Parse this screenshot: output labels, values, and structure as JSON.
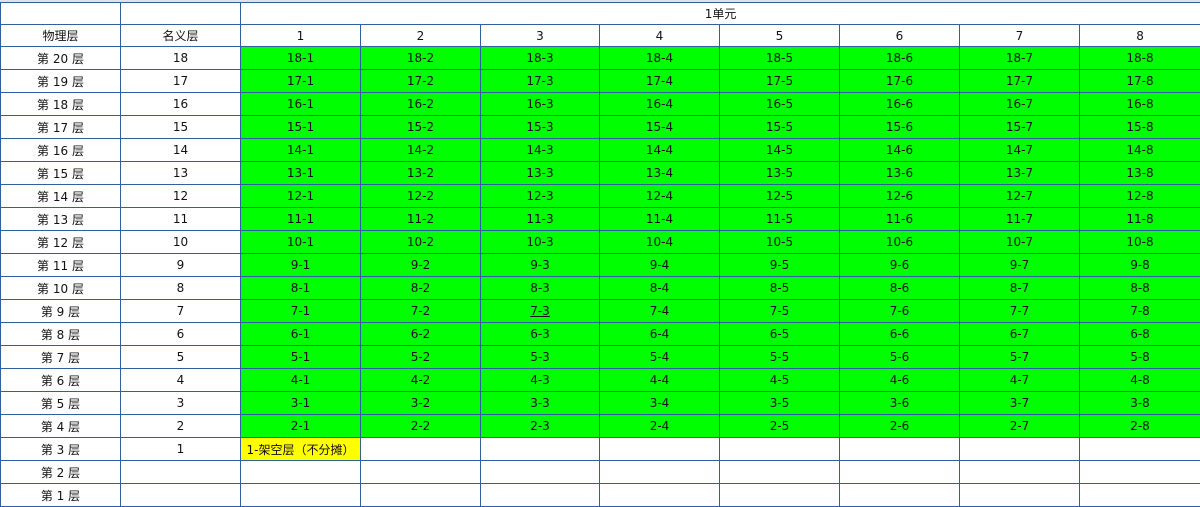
{
  "unit_title": "1单元",
  "header": {
    "physical": "物理层",
    "nominal": "名义层",
    "columns": [
      "1",
      "2",
      "3",
      "4",
      "5",
      "6",
      "7",
      "8"
    ]
  },
  "rows": [
    {
      "physical": "第 20 层",
      "nominal": "18",
      "rooms": [
        "18-1",
        "18-2",
        "18-3",
        "18-4",
        "18-5",
        "18-6",
        "18-7",
        "18-8"
      ]
    },
    {
      "physical": "第 19 层",
      "nominal": "17",
      "rooms": [
        "17-1",
        "17-2",
        "17-3",
        "17-4",
        "17-5",
        "17-6",
        "17-7",
        "17-8"
      ]
    },
    {
      "physical": "第 18 层",
      "nominal": "16",
      "rooms": [
        "16-1",
        "16-2",
        "16-3",
        "16-4",
        "16-5",
        "16-6",
        "16-7",
        "16-8"
      ]
    },
    {
      "physical": "第 17 层",
      "nominal": "15",
      "rooms": [
        "15-1",
        "15-2",
        "15-3",
        "15-4",
        "15-5",
        "15-6",
        "15-7",
        "15-8"
      ]
    },
    {
      "physical": "第 16 层",
      "nominal": "14",
      "rooms": [
        "14-1",
        "14-2",
        "14-3",
        "14-4",
        "14-5",
        "14-6",
        "14-7",
        "14-8"
      ]
    },
    {
      "physical": "第 15 层",
      "nominal": "13",
      "rooms": [
        "13-1",
        "13-2",
        "13-3",
        "13-4",
        "13-5",
        "13-6",
        "13-7",
        "13-8"
      ]
    },
    {
      "physical": "第 14 层",
      "nominal": "12",
      "rooms": [
        "12-1",
        "12-2",
        "12-3",
        "12-4",
        "12-5",
        "12-6",
        "12-7",
        "12-8"
      ]
    },
    {
      "physical": "第 13 层",
      "nominal": "11",
      "rooms": [
        "11-1",
        "11-2",
        "11-3",
        "11-4",
        "11-5",
        "11-6",
        "11-7",
        "11-8"
      ]
    },
    {
      "physical": "第 12 层",
      "nominal": "10",
      "rooms": [
        "10-1",
        "10-2",
        "10-3",
        "10-4",
        "10-5",
        "10-6",
        "10-7",
        "10-8"
      ]
    },
    {
      "physical": "第 11 层",
      "nominal": "9",
      "rooms": [
        "9-1",
        "9-2",
        "9-3",
        "9-4",
        "9-5",
        "9-6",
        "9-7",
        "9-8"
      ]
    },
    {
      "physical": "第 10 层",
      "nominal": "8",
      "rooms": [
        "8-1",
        "8-2",
        "8-3",
        "8-4",
        "8-5",
        "8-6",
        "8-7",
        "8-8"
      ]
    },
    {
      "physical": "第 9 层",
      "nominal": "7",
      "rooms": [
        "7-1",
        "7-2",
        "7-3",
        "7-4",
        "7-5",
        "7-6",
        "7-7",
        "7-8"
      ]
    },
    {
      "physical": "第 8 层",
      "nominal": "6",
      "rooms": [
        "6-1",
        "6-2",
        "6-3",
        "6-4",
        "6-5",
        "6-6",
        "6-7",
        "6-8"
      ]
    },
    {
      "physical": "第 7 层",
      "nominal": "5",
      "rooms": [
        "5-1",
        "5-2",
        "5-3",
        "5-4",
        "5-5",
        "5-6",
        "5-7",
        "5-8"
      ]
    },
    {
      "physical": "第 6 层",
      "nominal": "4",
      "rooms": [
        "4-1",
        "4-2",
        "4-3",
        "4-4",
        "4-5",
        "4-6",
        "4-7",
        "4-8"
      ]
    },
    {
      "physical": "第 5 层",
      "nominal": "3",
      "rooms": [
        "3-1",
        "3-2",
        "3-3",
        "3-4",
        "3-5",
        "3-6",
        "3-7",
        "3-8"
      ]
    },
    {
      "physical": "第 4 层",
      "nominal": "2",
      "rooms": [
        "2-1",
        "2-2",
        "2-3",
        "2-4",
        "2-5",
        "2-6",
        "2-7",
        "2-8"
      ]
    },
    {
      "physical": "第 3 层",
      "nominal": "1",
      "rooms": [
        "1-架空层（不分摊）",
        "",
        "",
        "",
        "",
        "",
        "",
        ""
      ]
    },
    {
      "physical": "第 2 层",
      "nominal": "",
      "rooms": [
        "",
        "",
        "",
        "",
        "",
        "",
        "",
        ""
      ]
    },
    {
      "physical": "第 1 层",
      "nominal": "",
      "rooms": [
        "",
        "",
        "",
        "",
        "",
        "",
        "",
        ""
      ]
    }
  ],
  "colors": {
    "sellable": "#00ff00",
    "stilt_floor": "#ffff00",
    "grid_line": "#2f5fa0"
  }
}
